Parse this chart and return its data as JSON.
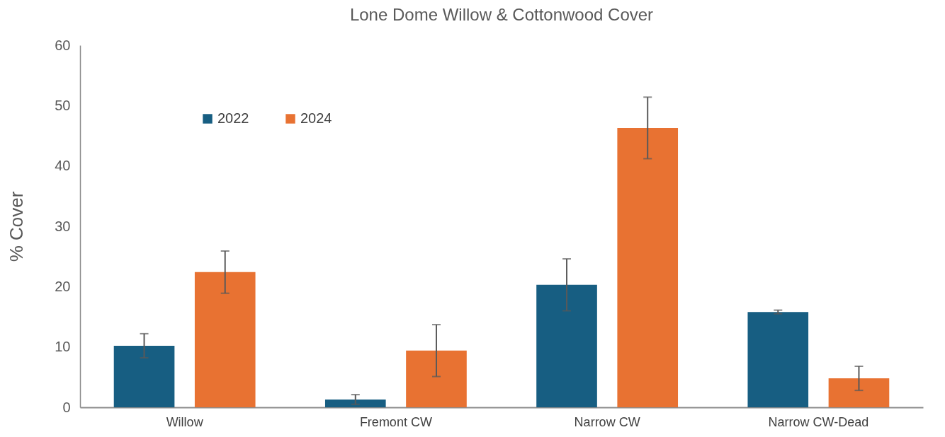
{
  "chart_data": {
    "type": "bar",
    "title": "Lone Dome Willow & Cottonwood Cover",
    "ylabel": "% Cover",
    "categories": [
      "Willow",
      "Fremont CW",
      "Narrow CW",
      "Narrow CW-Dead"
    ],
    "series": [
      {
        "name": "2022",
        "color": "#175e82",
        "values": [
          10.2,
          1.3,
          20.3,
          15.8
        ],
        "errors": [
          2.0,
          0.8,
          4.3,
          0.3
        ]
      },
      {
        "name": "2024",
        "color": "#e87232",
        "values": [
          22.4,
          9.4,
          46.3,
          4.8
        ],
        "errors": [
          3.5,
          4.3,
          5.1,
          2.0
        ]
      }
    ],
    "ylim": [
      0,
      60
    ],
    "yticks": [
      0,
      10,
      20,
      30,
      40,
      50,
      60
    ],
    "grid": false,
    "legend": "top left"
  }
}
